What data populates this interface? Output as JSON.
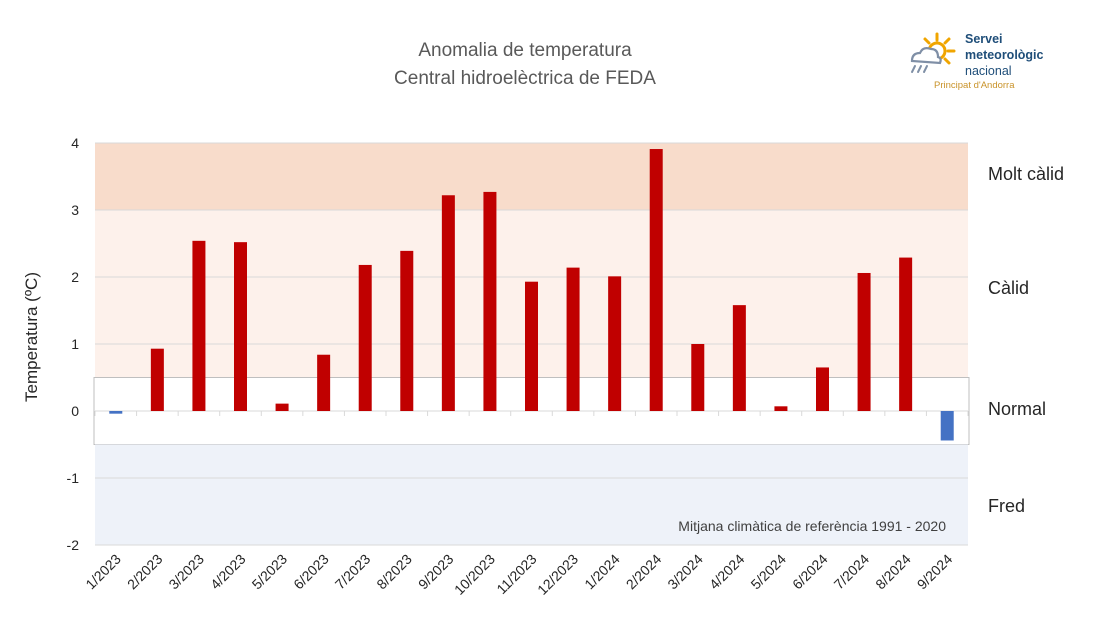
{
  "title": "Anomalia de temperatura",
  "subtitle": "Central hidroelèctrica de FEDA",
  "logo": {
    "line1": "Servei",
    "line2": "meteorològic",
    "line3": "nacional",
    "sub": "Principat d'Andorra",
    "icon": "sun-cloud-rain-icon"
  },
  "zones": {
    "molt_calid": "Molt càlid",
    "calid": "Càlid",
    "normal": "Normal",
    "fred": "Fred"
  },
  "reference_note": "Mitjana climàtica de referència 1991 - 2020",
  "colors": {
    "positive": "#c00000",
    "negative": "#4472c4",
    "zone_molt_calid": "#f8dccb",
    "zone_calid": "#fdf1eb",
    "zone_fred": "#eef2f9",
    "normal_border": "#bfbfbf",
    "grid": "#d9d9d9"
  },
  "chart_data": {
    "type": "bar",
    "title": "Anomalia de temperatura",
    "subtitle": "Central hidroelèctrica de FEDA",
    "xlabel": "",
    "ylabel": "Temperatura (ºC)",
    "ylim": [
      -2,
      4
    ],
    "yticks": [
      -2,
      -1,
      0,
      1,
      2,
      3,
      4
    ],
    "grid": true,
    "categories": [
      "1/2023",
      "2/2023",
      "3/2023",
      "4/2023",
      "5/2023",
      "6/2023",
      "7/2023",
      "8/2023",
      "9/2023",
      "10/2023",
      "11/2023",
      "12/2023",
      "1/2024",
      "2/2024",
      "3/2024",
      "4/2024",
      "5/2024",
      "6/2024",
      "7/2024",
      "8/2024",
      "9/2024"
    ],
    "values": [
      -0.04,
      0.93,
      2.54,
      2.52,
      0.11,
      0.84,
      2.18,
      2.39,
      3.22,
      3.27,
      1.93,
      2.14,
      2.01,
      3.91,
      1.0,
      1.58,
      0.07,
      0.65,
      2.06,
      2.29,
      -0.44
    ],
    "bands": [
      {
        "name": "Molt càlid",
        "from": 3,
        "to": 4
      },
      {
        "name": "Càlid",
        "from": 0.5,
        "to": 3
      },
      {
        "name": "Normal",
        "from": -0.5,
        "to": 0.5
      },
      {
        "name": "Fred",
        "from": -2,
        "to": -0.5
      }
    ]
  }
}
